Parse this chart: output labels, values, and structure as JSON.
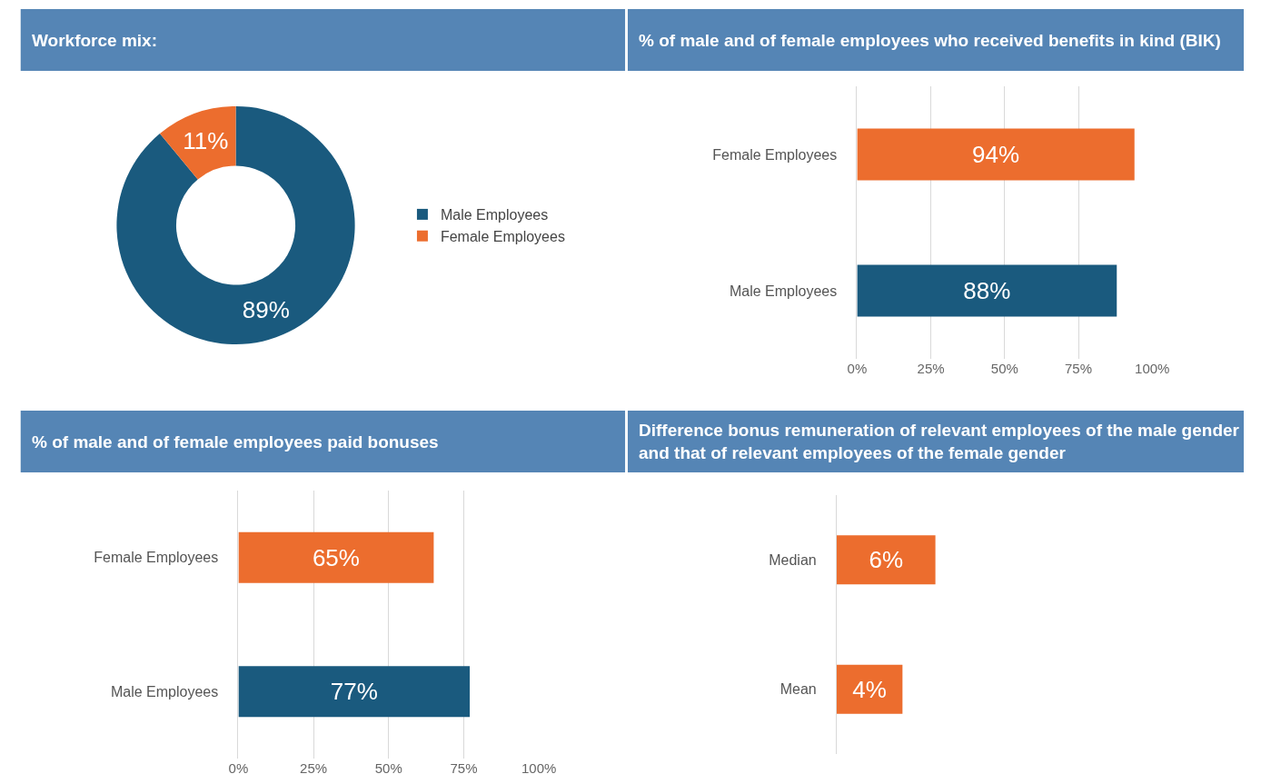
{
  "chart_data": [
    {
      "type": "donut",
      "title": "Workforce mix:",
      "categories": [
        "Male Employees",
        "Female Employees"
      ],
      "values": [
        89,
        11
      ],
      "value_labels": [
        "89%",
        "11%"
      ],
      "colors": [
        "#1a5a7e",
        "#ec6d2e"
      ],
      "legend": "right"
    },
    {
      "type": "bar",
      "orientation": "horizontal",
      "title": "% of male and of female employees who received benefits in kind (BIK)",
      "categories": [
        "Female Employees",
        "Male Employees"
      ],
      "values": [
        94,
        88
      ],
      "value_labels": [
        "94%",
        "88%"
      ],
      "colors": [
        "#ec6d2e",
        "#1a5a7e"
      ],
      "xlim": [
        0,
        100
      ],
      "xticks": [
        {
          "value": 0,
          "label": "0%"
        },
        {
          "value": 25,
          "label": "25%"
        },
        {
          "value": 50,
          "label": "50%"
        },
        {
          "value": 75,
          "label": "75%"
        },
        {
          "value": 100,
          "label": "100%"
        }
      ],
      "grid": "x"
    },
    {
      "type": "bar",
      "orientation": "horizontal",
      "title": "% of male and of female employees paid bonuses",
      "categories": [
        "Female Employees",
        "Male Employees"
      ],
      "values": [
        65,
        77
      ],
      "value_labels": [
        "65%",
        "77%"
      ],
      "colors": [
        "#ec6d2e",
        "#1a5a7e"
      ],
      "xlim": [
        0,
        100
      ],
      "xticks": [
        {
          "value": 0,
          "label": "0%"
        },
        {
          "value": 25,
          "label": "25%"
        },
        {
          "value": 50,
          "label": "50%"
        },
        {
          "value": 75,
          "label": "75%"
        },
        {
          "value": 100,
          "label": "100%"
        }
      ],
      "grid": "x"
    },
    {
      "type": "bar",
      "orientation": "horizontal",
      "title": "Difference bonus remuneration of relevant employees of the male gender and that of relevant employees of the female gender",
      "categories": [
        "Median",
        "Mean"
      ],
      "values": [
        6,
        4
      ],
      "value_labels": [
        "6%",
        "4%"
      ],
      "colors": [
        "#ec6d2e",
        "#ec6d2e"
      ],
      "tick_labels": "y"
    }
  ]
}
